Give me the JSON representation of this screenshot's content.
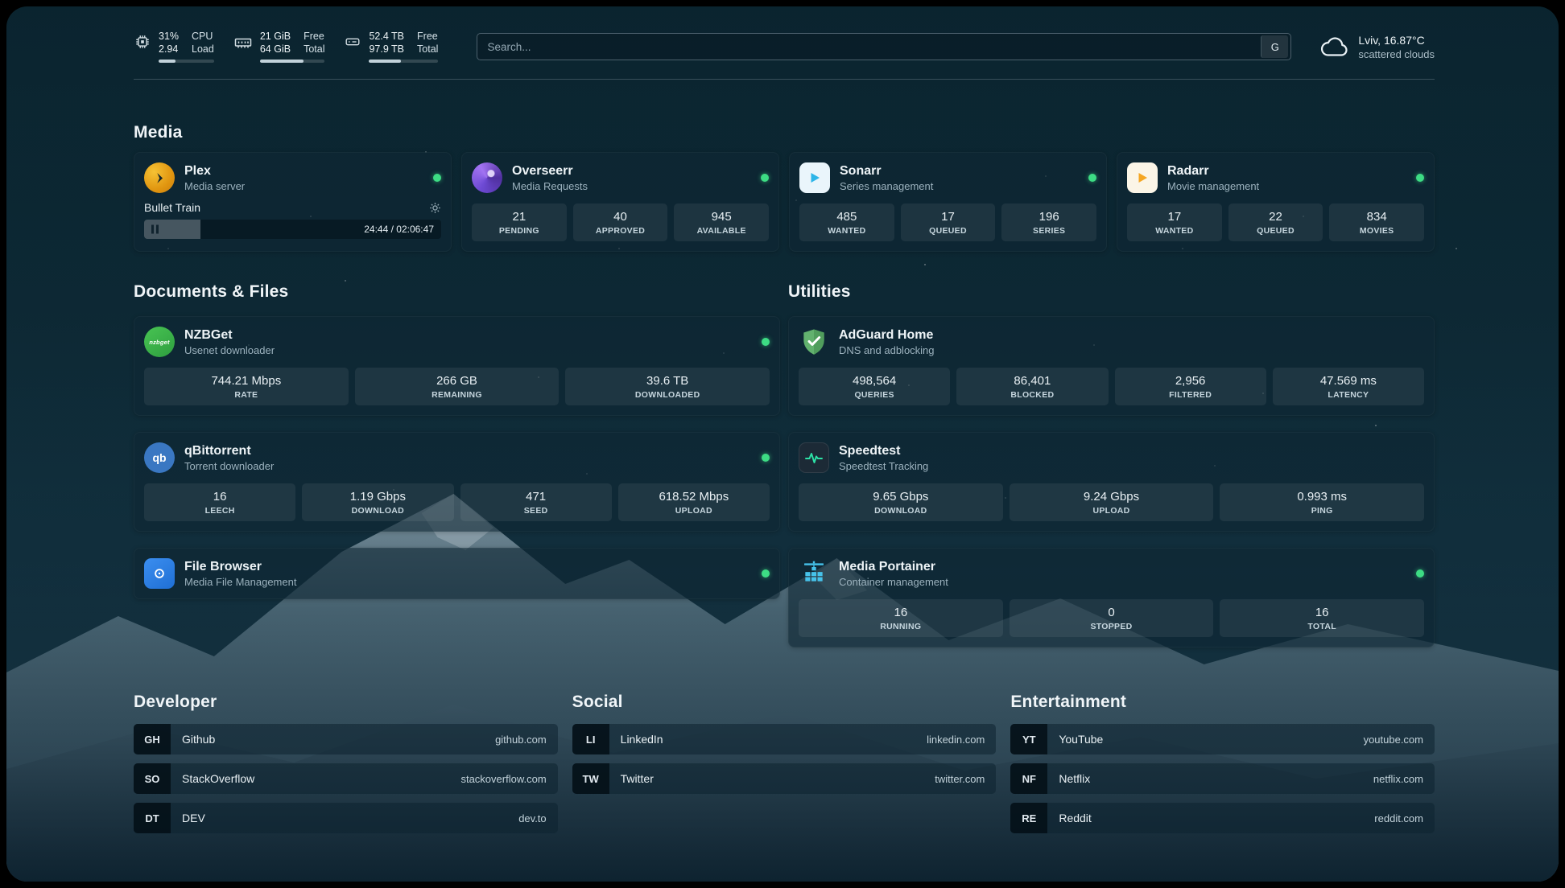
{
  "topbar": {
    "cpu": {
      "value1": "31%",
      "label1": "CPU",
      "value2": "2.94",
      "label2": "Load",
      "progress": 31
    },
    "ram": {
      "value1": "21 GiB",
      "label1": "Free",
      "value2": "64 GiB",
      "label2": "Total",
      "progress": 67
    },
    "disk": {
      "value1": "52.4 TB",
      "label1": "Free",
      "value2": "97.9 TB",
      "label2": "Total",
      "progress": 46
    },
    "search": {
      "placeholder": "Search...",
      "button_label": "G"
    },
    "weather": {
      "location": "Lviv, 16.87°C",
      "condition": "scattered clouds"
    }
  },
  "sections": {
    "media": {
      "title": "Media",
      "cards": [
        {
          "name": "Plex",
          "desc": "Media server",
          "icon": "plex-icon",
          "online": true,
          "player": {
            "title": "Bullet Train",
            "time": "24:44 / 02:06:47",
            "progress": 19
          }
        },
        {
          "name": "Overseerr",
          "desc": "Media Requests",
          "icon": "overseerr-icon",
          "online": true,
          "stats": [
            {
              "value": "21",
              "label": "PENDING"
            },
            {
              "value": "40",
              "label": "APPROVED"
            },
            {
              "value": "945",
              "label": "AVAILABLE"
            }
          ]
        },
        {
          "name": "Sonarr",
          "desc": "Series management",
          "icon": "sonarr-icon",
          "online": true,
          "stats": [
            {
              "value": "485",
              "label": "WANTED"
            },
            {
              "value": "17",
              "label": "QUEUED"
            },
            {
              "value": "196",
              "label": "SERIES"
            }
          ]
        },
        {
          "name": "Radarr",
          "desc": "Movie management",
          "icon": "radarr-icon",
          "online": true,
          "stats": [
            {
              "value": "17",
              "label": "WANTED"
            },
            {
              "value": "22",
              "label": "QUEUED"
            },
            {
              "value": "834",
              "label": "MOVIES"
            }
          ]
        }
      ]
    },
    "documents": {
      "title": "Documents & Files",
      "cards": [
        {
          "name": "NZBGet",
          "desc": "Usenet downloader",
          "icon": "nzbget-icon",
          "online": true,
          "stats": [
            {
              "value": "744.21 Mbps",
              "label": "RATE"
            },
            {
              "value": "266 GB",
              "label": "REMAINING"
            },
            {
              "value": "39.6 TB",
              "label": "DOWNLOADED"
            }
          ]
        },
        {
          "name": "qBittorrent",
          "desc": "Torrent downloader",
          "icon": "qbittorrent-icon",
          "online": true,
          "stats": [
            {
              "value": "16",
              "label": "LEECH"
            },
            {
              "value": "1.19 Gbps",
              "label": "DOWNLOAD"
            },
            {
              "value": "471",
              "label": "SEED"
            },
            {
              "value": "618.52 Mbps",
              "label": "UPLOAD"
            }
          ]
        },
        {
          "name": "File Browser",
          "desc": "Media File Management",
          "icon": "filebrowser-icon",
          "online": true,
          "stats": []
        }
      ]
    },
    "utilities": {
      "title": "Utilities",
      "cards": [
        {
          "name": "AdGuard Home",
          "desc": "DNS and adblocking",
          "icon": "adguard-icon",
          "online": false,
          "stats": [
            {
              "value": "498,564",
              "label": "QUERIES"
            },
            {
              "value": "86,401",
              "label": "BLOCKED"
            },
            {
              "value": "2,956",
              "label": "FILTERED"
            },
            {
              "value": "47.569 ms",
              "label": "LATENCY"
            }
          ]
        },
        {
          "name": "Speedtest",
          "desc": "Speedtest Tracking",
          "icon": "speedtest-icon",
          "online": false,
          "stats": [
            {
              "value": "9.65 Gbps",
              "label": "DOWNLOAD"
            },
            {
              "value": "9.24 Gbps",
              "label": "UPLOAD"
            },
            {
              "value": "0.993 ms",
              "label": "PING"
            }
          ]
        },
        {
          "name": "Media Portainer",
          "desc": "Container management",
          "icon": "portainer-icon",
          "online": true,
          "stats": [
            {
              "value": "16",
              "label": "RUNNING"
            },
            {
              "value": "0",
              "label": "STOPPED"
            },
            {
              "value": "16",
              "label": "TOTAL"
            }
          ]
        }
      ]
    }
  },
  "bookmarks": [
    {
      "title": "Developer",
      "items": [
        {
          "abbr": "GH",
          "name": "Github",
          "url": "github.com"
        },
        {
          "abbr": "SO",
          "name": "StackOverflow",
          "url": "stackoverflow.com"
        },
        {
          "abbr": "DT",
          "name": "DEV",
          "url": "dev.to"
        }
      ]
    },
    {
      "title": "Social",
      "items": [
        {
          "abbr": "LI",
          "name": "LinkedIn",
          "url": "linkedin.com"
        },
        {
          "abbr": "TW",
          "name": "Twitter",
          "url": "twitter.com"
        }
      ]
    },
    {
      "title": "Entertainment",
      "items": [
        {
          "abbr": "YT",
          "name": "YouTube",
          "url": "youtube.com"
        },
        {
          "abbr": "NF",
          "name": "Netflix",
          "url": "netflix.com"
        },
        {
          "abbr": "RE",
          "name": "Reddit",
          "url": "reddit.com"
        }
      ]
    }
  ],
  "colors": {
    "status_online": "#3ddc84",
    "icon_nzbget_label": "nzbget",
    "icon_qbittorrent_label": "qb"
  }
}
